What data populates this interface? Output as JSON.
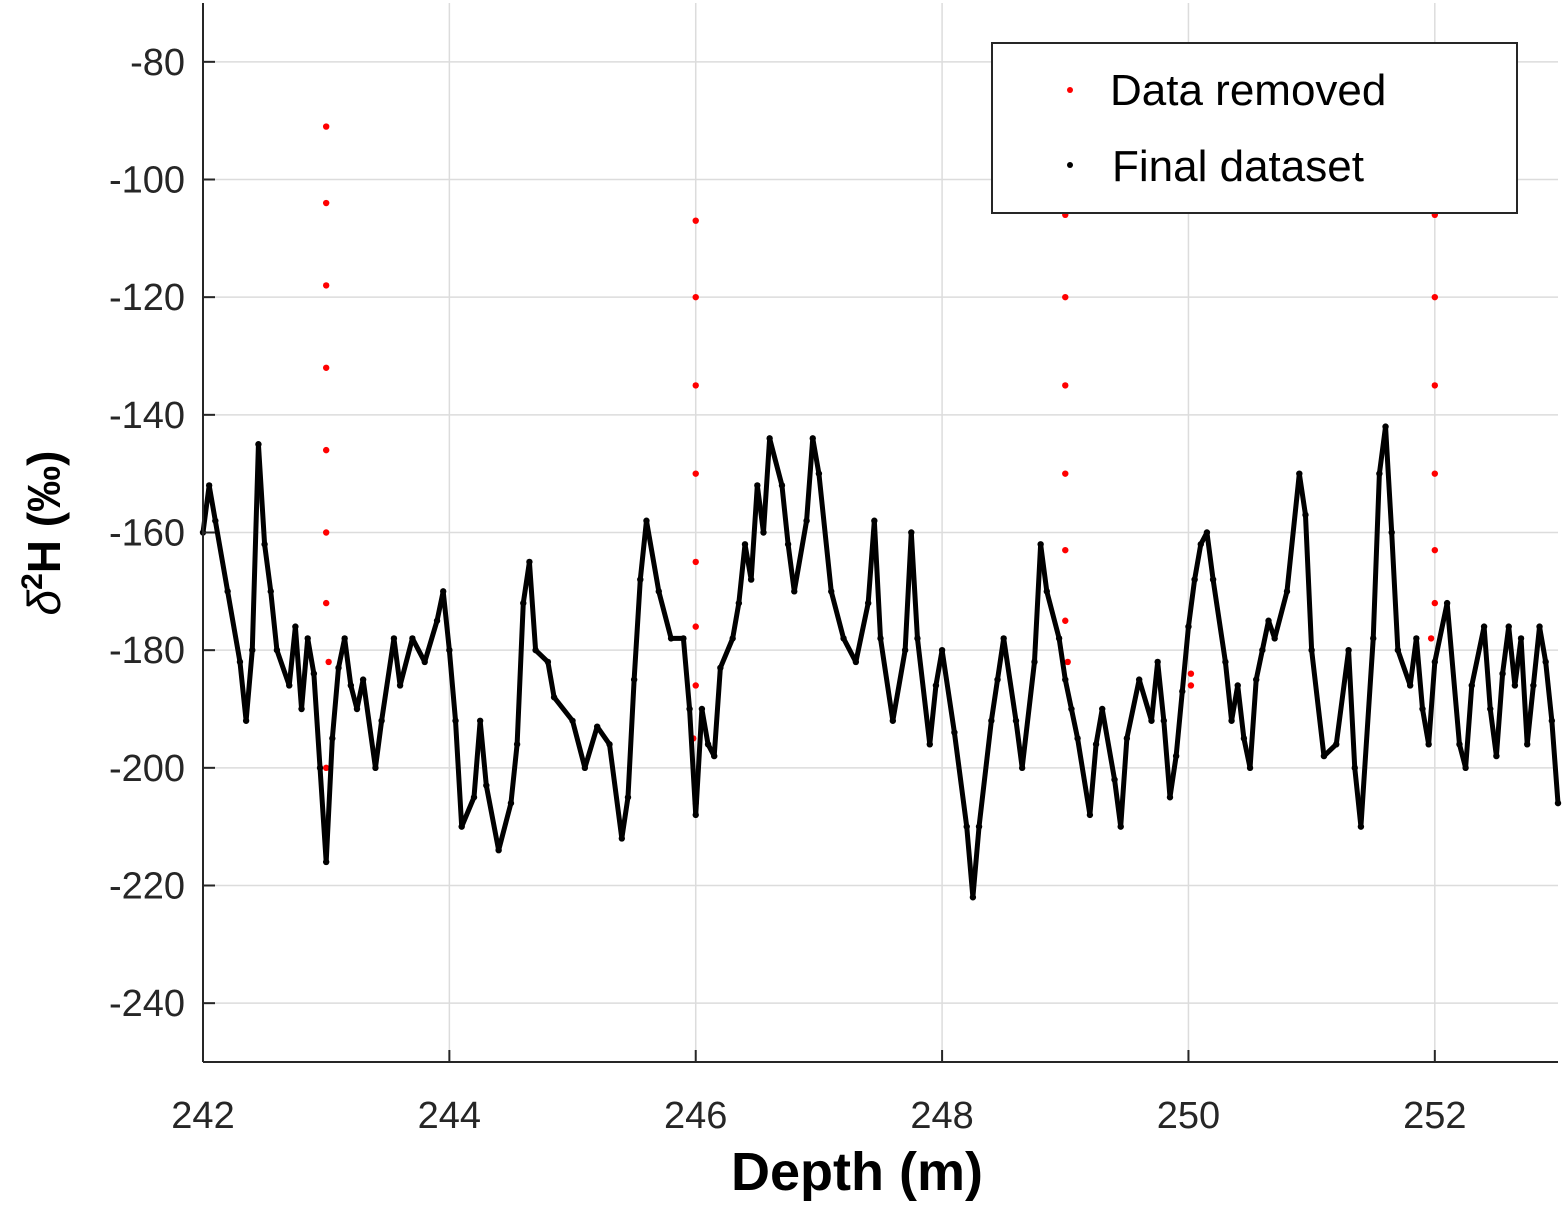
{
  "chart_data": {
    "type": "scatter",
    "xlabel": "Depth (m)",
    "ylabel": {
      "delta": "δ",
      "superscript": "2",
      "rest": "H (‰)"
    },
    "xlim": [
      242,
      253
    ],
    "ylim": [
      -250,
      -70
    ],
    "x_ticks": [
      242,
      244,
      246,
      248,
      250,
      252
    ],
    "y_ticks": [
      -80,
      -100,
      -120,
      -140,
      -160,
      -180,
      -200,
      -220,
      -240
    ],
    "grid": true,
    "legend_position": "top-right",
    "series": [
      {
        "name": "Data removed",
        "color": "#ff0000",
        "marker": "dot",
        "points": [
          [
            243.0,
            -91
          ],
          [
            243.0,
            -104
          ],
          [
            243.0,
            -118
          ],
          [
            243.0,
            -132
          ],
          [
            243.0,
            -146
          ],
          [
            243.0,
            -160
          ],
          [
            243.0,
            -172
          ],
          [
            243.02,
            -182
          ],
          [
            243.0,
            -200
          ],
          [
            243.0,
            -210
          ],
          [
            246.0,
            -107
          ],
          [
            246.0,
            -120
          ],
          [
            246.0,
            -135
          ],
          [
            246.0,
            -150
          ],
          [
            246.0,
            -165
          ],
          [
            246.0,
            -176
          ],
          [
            246.0,
            -186
          ],
          [
            245.98,
            -195
          ],
          [
            246.0,
            -206
          ],
          [
            249.0,
            -106
          ],
          [
            249.0,
            -120
          ],
          [
            249.0,
            -135
          ],
          [
            249.0,
            -150
          ],
          [
            249.0,
            -163
          ],
          [
            249.0,
            -175
          ],
          [
            249.02,
            -182
          ],
          [
            250.02,
            -184
          ],
          [
            250.02,
            -186
          ],
          [
            252.0,
            -106
          ],
          [
            252.0,
            -120
          ],
          [
            252.0,
            -135
          ],
          [
            252.0,
            -150
          ],
          [
            252.0,
            -163
          ],
          [
            252.0,
            -172
          ],
          [
            251.97,
            -178
          ]
        ]
      },
      {
        "name": "Final dataset",
        "color": "#000000",
        "marker": "dot",
        "points": [
          [
            242.0,
            -160
          ],
          [
            242.05,
            -152
          ],
          [
            242.1,
            -158
          ],
          [
            242.2,
            -170
          ],
          [
            242.3,
            -182
          ],
          [
            242.35,
            -192
          ],
          [
            242.4,
            -180
          ],
          [
            242.45,
            -145
          ],
          [
            242.5,
            -162
          ],
          [
            242.55,
            -170
          ],
          [
            242.6,
            -180
          ],
          [
            242.7,
            -186
          ],
          [
            242.75,
            -176
          ],
          [
            242.8,
            -190
          ],
          [
            242.85,
            -178
          ],
          [
            242.9,
            -184
          ],
          [
            242.95,
            -200
          ],
          [
            243.0,
            -216
          ],
          [
            243.05,
            -195
          ],
          [
            243.1,
            -183
          ],
          [
            243.15,
            -178
          ],
          [
            243.2,
            -186
          ],
          [
            243.25,
            -190
          ],
          [
            243.3,
            -185
          ],
          [
            243.4,
            -200
          ],
          [
            243.45,
            -192
          ],
          [
            243.55,
            -178
          ],
          [
            243.6,
            -186
          ],
          [
            243.7,
            -178
          ],
          [
            243.8,
            -182
          ],
          [
            243.9,
            -175
          ],
          [
            243.95,
            -170
          ],
          [
            244.0,
            -180
          ],
          [
            244.05,
            -192
          ],
          [
            244.1,
            -210
          ],
          [
            244.2,
            -205
          ],
          [
            244.25,
            -192
          ],
          [
            244.3,
            -203
          ],
          [
            244.4,
            -214
          ],
          [
            244.5,
            -206
          ],
          [
            244.55,
            -196
          ],
          [
            244.6,
            -172
          ],
          [
            244.65,
            -165
          ],
          [
            244.7,
            -180
          ],
          [
            244.8,
            -182
          ],
          [
            244.85,
            -188
          ],
          [
            245.0,
            -192
          ],
          [
            245.1,
            -200
          ],
          [
            245.2,
            -193
          ],
          [
            245.3,
            -196
          ],
          [
            245.4,
            -212
          ],
          [
            245.45,
            -205
          ],
          [
            245.5,
            -185
          ],
          [
            245.55,
            -168
          ],
          [
            245.6,
            -158
          ],
          [
            245.7,
            -170
          ],
          [
            245.8,
            -178
          ],
          [
            245.9,
            -178
          ],
          [
            245.95,
            -190
          ],
          [
            246.0,
            -208
          ],
          [
            246.05,
            -190
          ],
          [
            246.1,
            -196
          ],
          [
            246.15,
            -198
          ],
          [
            246.2,
            -183
          ],
          [
            246.3,
            -178
          ],
          [
            246.35,
            -172
          ],
          [
            246.4,
            -162
          ],
          [
            246.45,
            -168
          ],
          [
            246.5,
            -152
          ],
          [
            246.55,
            -160
          ],
          [
            246.6,
            -144
          ],
          [
            246.7,
            -152
          ],
          [
            246.75,
            -162
          ],
          [
            246.8,
            -170
          ],
          [
            246.9,
            -158
          ],
          [
            246.95,
            -144
          ],
          [
            247.0,
            -150
          ],
          [
            247.1,
            -170
          ],
          [
            247.2,
            -178
          ],
          [
            247.3,
            -182
          ],
          [
            247.4,
            -172
          ],
          [
            247.45,
            -158
          ],
          [
            247.5,
            -178
          ],
          [
            247.6,
            -192
          ],
          [
            247.7,
            -180
          ],
          [
            247.75,
            -160
          ],
          [
            247.8,
            -178
          ],
          [
            247.9,
            -196
          ],
          [
            247.95,
            -186
          ],
          [
            248.0,
            -180
          ],
          [
            248.1,
            -194
          ],
          [
            248.2,
            -210
          ],
          [
            248.25,
            -222
          ],
          [
            248.3,
            -210
          ],
          [
            248.4,
            -192
          ],
          [
            248.45,
            -185
          ],
          [
            248.5,
            -178
          ],
          [
            248.6,
            -192
          ],
          [
            248.65,
            -200
          ],
          [
            248.75,
            -182
          ],
          [
            248.8,
            -162
          ],
          [
            248.85,
            -170
          ],
          [
            248.95,
            -178
          ],
          [
            249.0,
            -185
          ],
          [
            249.05,
            -190
          ],
          [
            249.1,
            -195
          ],
          [
            249.2,
            -208
          ],
          [
            249.25,
            -196
          ],
          [
            249.3,
            -190
          ],
          [
            249.4,
            -202
          ],
          [
            249.45,
            -210
          ],
          [
            249.5,
            -195
          ],
          [
            249.6,
            -185
          ],
          [
            249.7,
            -192
          ],
          [
            249.75,
            -182
          ],
          [
            249.8,
            -192
          ],
          [
            249.85,
            -205
          ],
          [
            249.9,
            -198
          ],
          [
            249.95,
            -187
          ],
          [
            250.0,
            -176
          ],
          [
            250.05,
            -168
          ],
          [
            250.1,
            -162
          ],
          [
            250.15,
            -160
          ],
          [
            250.2,
            -168
          ],
          [
            250.3,
            -182
          ],
          [
            250.35,
            -192
          ],
          [
            250.4,
            -186
          ],
          [
            250.45,
            -195
          ],
          [
            250.5,
            -200
          ],
          [
            250.55,
            -185
          ],
          [
            250.6,
            -180
          ],
          [
            250.65,
            -175
          ],
          [
            250.7,
            -178
          ],
          [
            250.8,
            -170
          ],
          [
            250.9,
            -150
          ],
          [
            250.95,
            -157
          ],
          [
            251.0,
            -180
          ],
          [
            251.1,
            -198
          ],
          [
            251.2,
            -196
          ],
          [
            251.3,
            -180
          ],
          [
            251.35,
            -200
          ],
          [
            251.4,
            -210
          ],
          [
            251.5,
            -178
          ],
          [
            251.55,
            -150
          ],
          [
            251.6,
            -142
          ],
          [
            251.65,
            -160
          ],
          [
            251.7,
            -180
          ],
          [
            251.8,
            -186
          ],
          [
            251.85,
            -178
          ],
          [
            251.9,
            -190
          ],
          [
            251.95,
            -196
          ],
          [
            252.0,
            -182
          ],
          [
            252.1,
            -172
          ],
          [
            252.2,
            -196
          ],
          [
            252.25,
            -200
          ],
          [
            252.3,
            -186
          ],
          [
            252.4,
            -176
          ],
          [
            252.45,
            -190
          ],
          [
            252.5,
            -198
          ],
          [
            252.55,
            -184
          ],
          [
            252.6,
            -176
          ],
          [
            252.65,
            -186
          ],
          [
            252.7,
            -178
          ],
          [
            252.75,
            -196
          ],
          [
            252.8,
            -186
          ],
          [
            252.85,
            -176
          ],
          [
            252.9,
            -182
          ],
          [
            252.95,
            -192
          ],
          [
            253.0,
            -206
          ]
        ]
      }
    ]
  }
}
